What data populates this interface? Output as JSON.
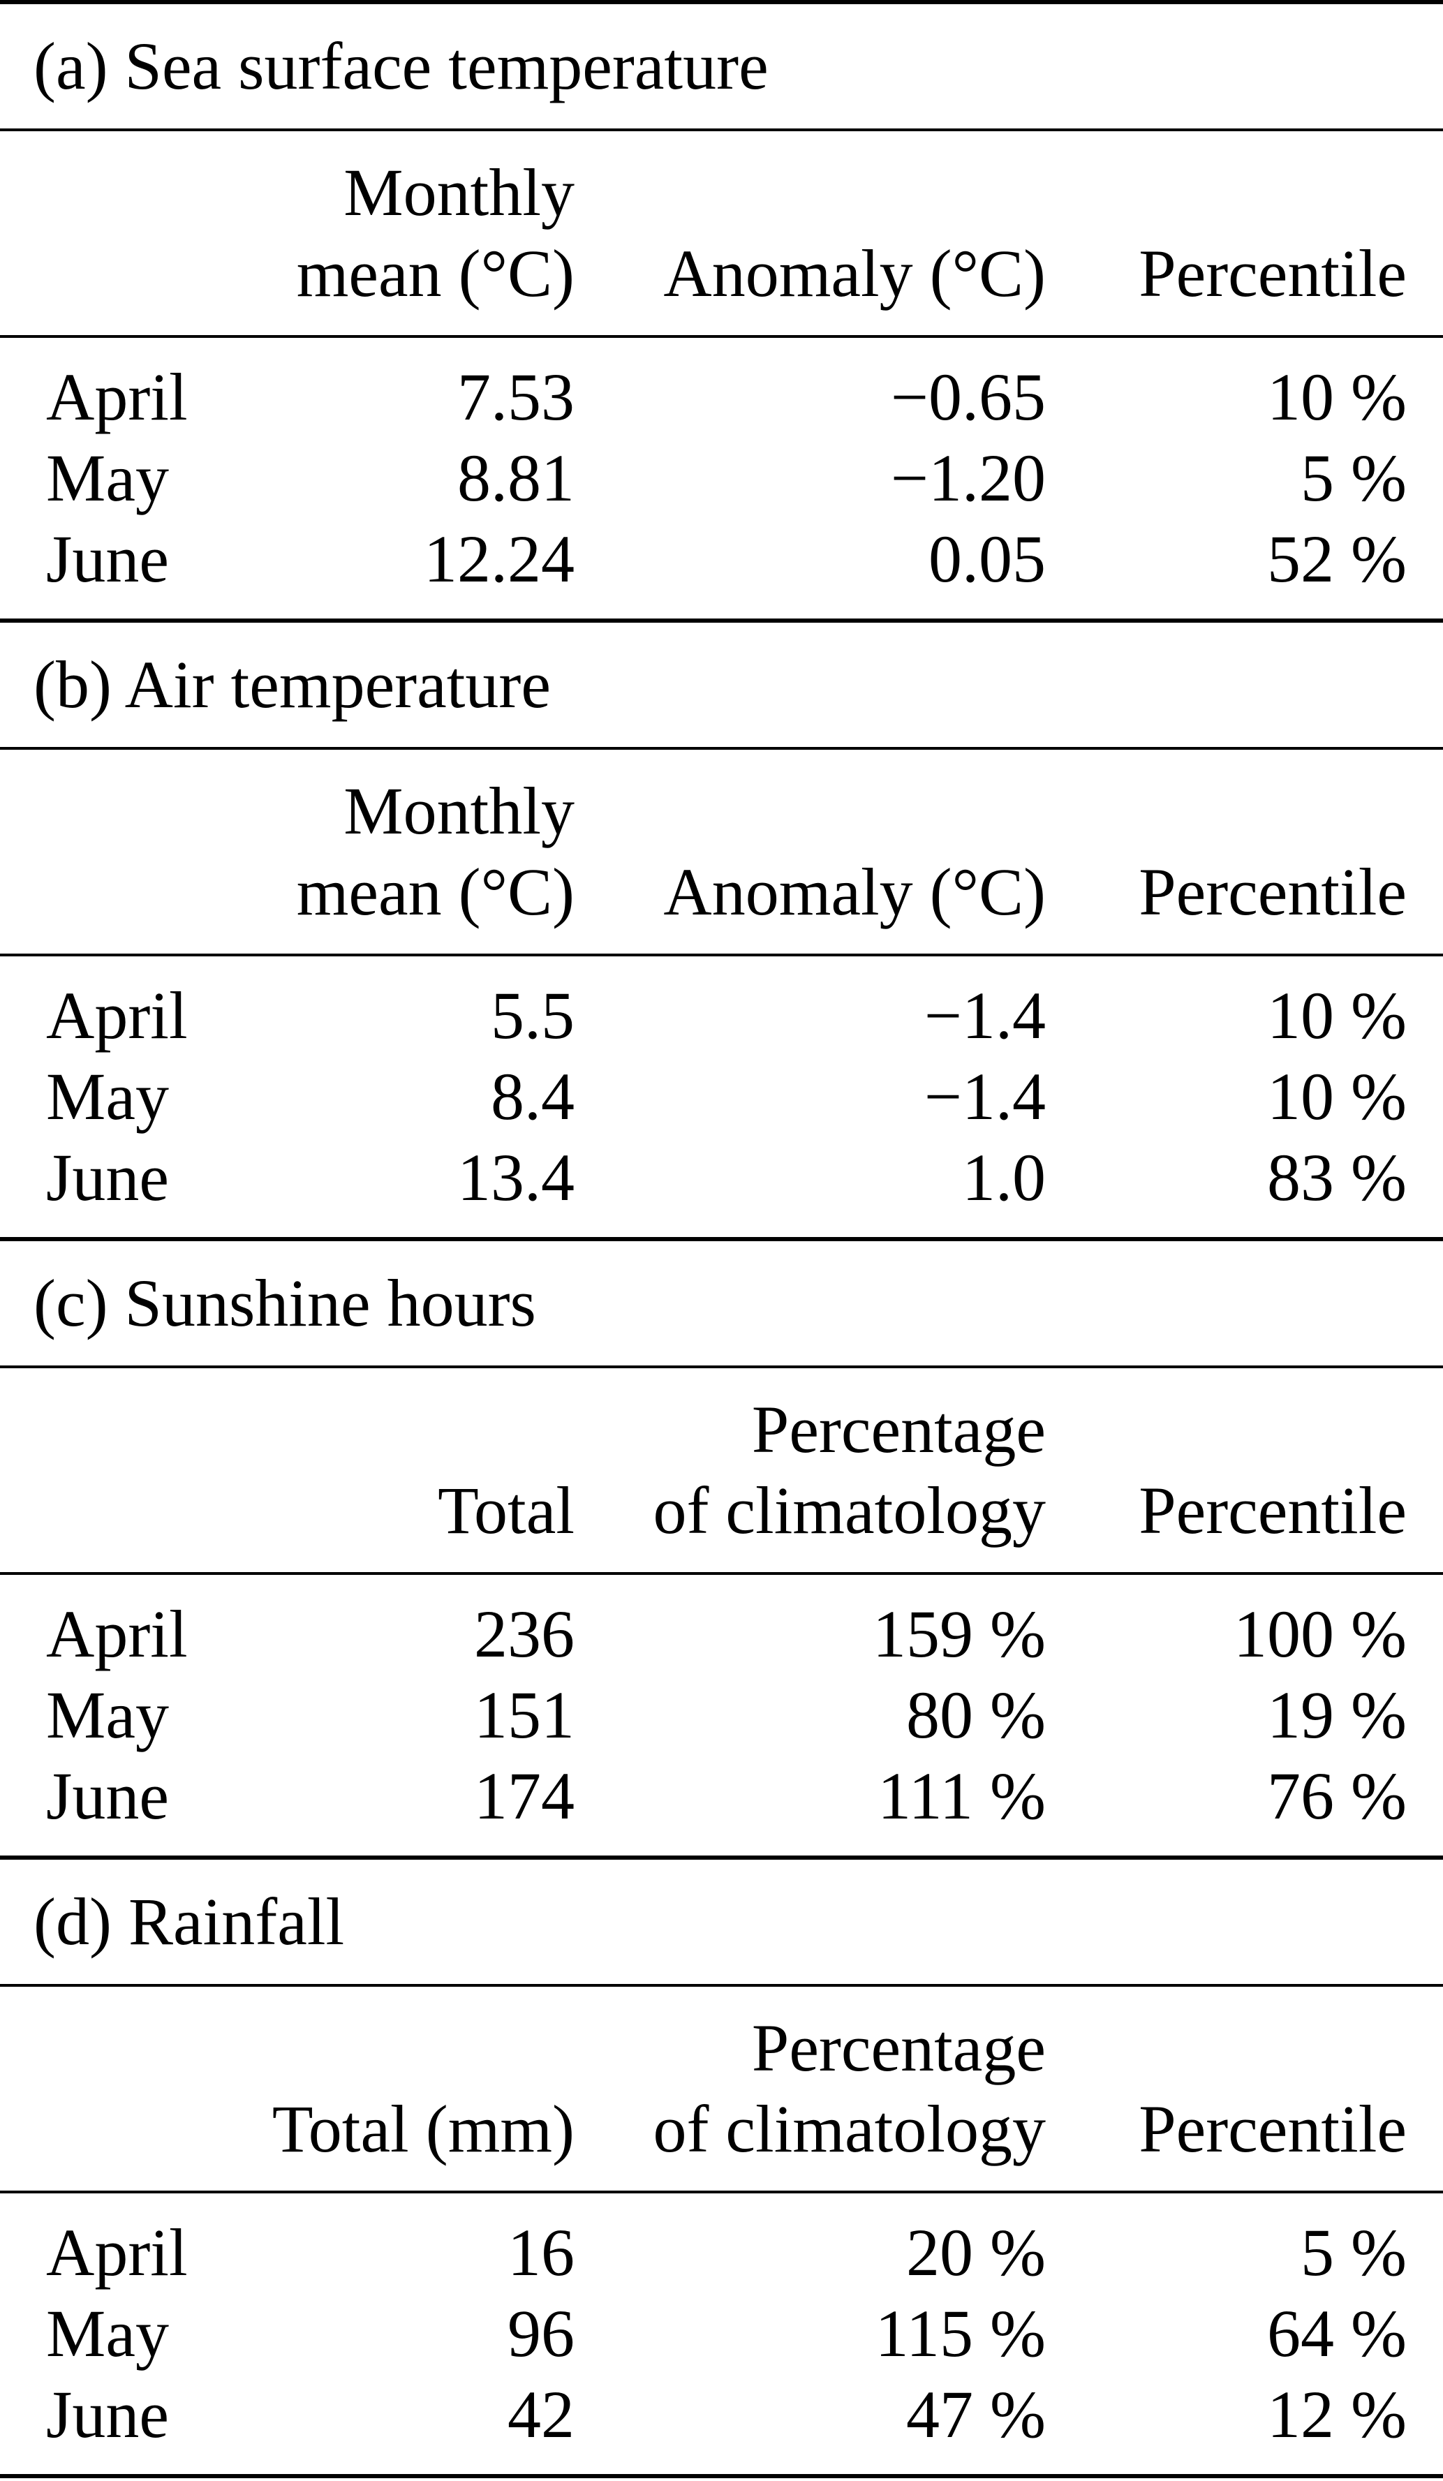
{
  "table": {
    "colors": {
      "text": "#000000",
      "background": "#ffffff",
      "rule": "#000000"
    },
    "sections": [
      {
        "label": "(a) Sea surface temperature",
        "header": {
          "line1": [
            "",
            "Monthly",
            "",
            ""
          ],
          "line2": [
            "",
            "mean (°C)",
            "Anomaly (°C)",
            "Percentile"
          ]
        },
        "rows": [
          {
            "month": "April",
            "values": [
              "7.53",
              "−0.65",
              "10 %"
            ]
          },
          {
            "month": "May",
            "values": [
              "8.81",
              "−1.20",
              "5 %"
            ]
          },
          {
            "month": "June",
            "values": [
              "12.24",
              "0.05",
              "52 %"
            ]
          }
        ]
      },
      {
        "label": "(b) Air temperature",
        "header": {
          "line1": [
            "",
            "Monthly",
            "",
            ""
          ],
          "line2": [
            "",
            "mean (°C)",
            "Anomaly (°C)",
            "Percentile"
          ]
        },
        "rows": [
          {
            "month": "April",
            "values": [
              "5.5",
              "−1.4",
              "10 %"
            ]
          },
          {
            "month": "May",
            "values": [
              "8.4",
              "−1.4",
              "10 %"
            ]
          },
          {
            "month": "June",
            "values": [
              "13.4",
              "1.0",
              "83 %"
            ]
          }
        ]
      },
      {
        "label": "(c) Sunshine hours",
        "header": {
          "line1": [
            "",
            "",
            "Percentage",
            ""
          ],
          "line2": [
            "",
            "Total",
            "of climatology",
            "Percentile"
          ]
        },
        "rows": [
          {
            "month": "April",
            "values": [
              "236",
              "159 %",
              "100 %"
            ]
          },
          {
            "month": "May",
            "values": [
              "151",
              "80 %",
              "19 %"
            ]
          },
          {
            "month": "June",
            "values": [
              "174",
              "111 %",
              "76 %"
            ]
          }
        ]
      },
      {
        "label": "(d) Rainfall",
        "header": {
          "line1": [
            "",
            "",
            "Percentage",
            ""
          ],
          "line2": [
            "",
            "Total (mm)",
            "of climatology",
            "Percentile"
          ]
        },
        "rows": [
          {
            "month": "April",
            "values": [
              "16",
              "20 %",
              "5 %"
            ]
          },
          {
            "month": "May",
            "values": [
              "96",
              "115 %",
              "64 %"
            ]
          },
          {
            "month": "June",
            "values": [
              "42",
              "47 %",
              "12 %"
            ]
          }
        ]
      }
    ]
  }
}
